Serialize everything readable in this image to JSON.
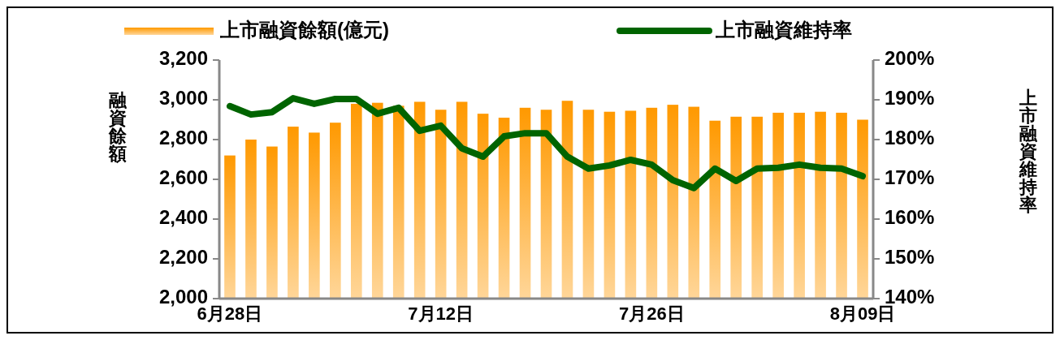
{
  "chart_data": {
    "type": "bar",
    "ylabel": "融資餘額",
    "y2label": "上市融資維持率",
    "categories": [
      "6月28日",
      null,
      null,
      null,
      null,
      null,
      null,
      null,
      null,
      null,
      "7月12日",
      null,
      null,
      null,
      null,
      null,
      null,
      null,
      null,
      null,
      "7月26日",
      null,
      null,
      null,
      null,
      null,
      null,
      null,
      null,
      null,
      "8月09日"
    ],
    "series": [
      {
        "name": "上市融資餘額(億元)",
        "type": "bar",
        "color": "#ff9900",
        "values": [
          2720,
          2800,
          2765,
          2865,
          2835,
          2885,
          2980,
          2985,
          2970,
          2990,
          2950,
          2990,
          2930,
          2910,
          2960,
          2950,
          2995,
          2950,
          2940,
          2945,
          2960,
          2975,
          2965,
          2895,
          2915,
          2915,
          2935,
          2935,
          2940,
          2935,
          2900
        ]
      },
      {
        "name": "上市融資維持率",
        "type": "line",
        "axis": "y2",
        "color": "#006400",
        "values": [
          188.4,
          186.3,
          186.9,
          190.4,
          189.0,
          190.2,
          190.2,
          186.5,
          188.0,
          182.2,
          183.5,
          177.8,
          175.7,
          180.8,
          181.6,
          181.6,
          175.7,
          172.7,
          173.5,
          174.9,
          173.7,
          169.8,
          167.8,
          172.7,
          169.6,
          172.7,
          172.9,
          173.7,
          172.9,
          172.7,
          170.8
        ]
      }
    ],
    "ylim": [
      2000,
      3200
    ],
    "yticks": [
      {
        "value": 2000,
        "label": "2,000"
      },
      {
        "value": 2200,
        "label": "2,200"
      },
      {
        "value": 2400,
        "label": "2,400"
      },
      {
        "value": 2600,
        "label": "2,600"
      },
      {
        "value": 2800,
        "label": "2,800"
      },
      {
        "value": 3000,
        "label": "3,000"
      },
      {
        "value": 3200,
        "label": "3,200"
      }
    ],
    "y2lim": [
      140,
      200
    ],
    "y2ticks": [
      {
        "value": 140,
        "label": "140%"
      },
      {
        "value": 150,
        "label": "150%"
      },
      {
        "value": 160,
        "label": "160%"
      },
      {
        "value": 170,
        "label": "170%"
      },
      {
        "value": 180,
        "label": "180%"
      },
      {
        "value": 190,
        "label": "190%"
      },
      {
        "value": 200,
        "label": "200%"
      }
    ],
    "legend": "top",
    "grid": false
  }
}
